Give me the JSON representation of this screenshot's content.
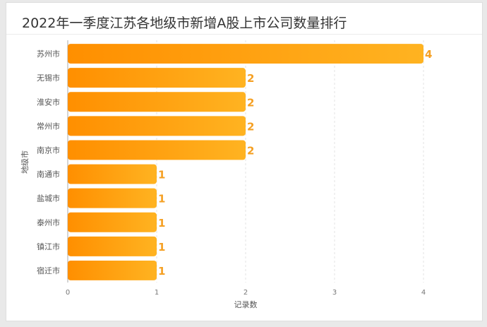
{
  "chart_data": {
    "type": "bar",
    "orientation": "horizontal",
    "title": "2022年一季度江苏各地级市新增A股上市公司数量排行",
    "xlabel": "记录数",
    "ylabel": "地级市",
    "categories": [
      "苏州市",
      "无锡市",
      "淮安市",
      "常州市",
      "南京市",
      "南通市",
      "盐城市",
      "泰州市",
      "镇江市",
      "宿迁市"
    ],
    "values": [
      4,
      2,
      2,
      2,
      2,
      1,
      1,
      1,
      1,
      1
    ],
    "xlim": [
      0,
      4
    ],
    "xticks": [
      "0",
      "1",
      "2",
      "3",
      "4"
    ],
    "grid": true,
    "colors": {
      "bar_start": "#ff8f00",
      "bar_end": "#ffb321",
      "label": "#f5a023"
    }
  }
}
